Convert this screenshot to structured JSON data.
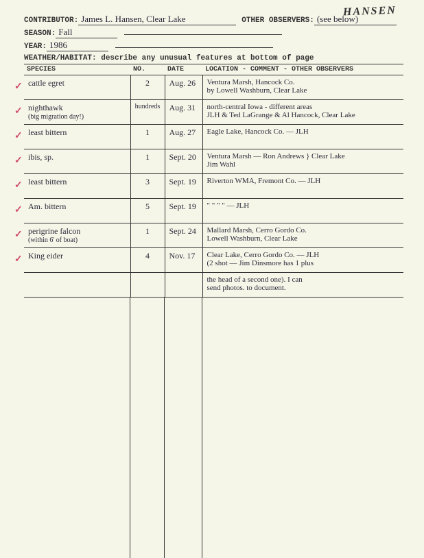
{
  "corner_name": "HANSEN",
  "header": {
    "contributor_label": "CONTRIBUTOR:",
    "contributor": "James L. Hansen, Clear Lake",
    "observers_label": "OTHER OBSERVERS:",
    "observers": "(see below)",
    "season_label": "SEASON:",
    "season": "Fall",
    "year_label": "YEAR:",
    "year": "1986",
    "weather": "WEATHER/HABITAT: describe any unusual features at bottom of page"
  },
  "table": {
    "headers": {
      "species": "SPECIES",
      "no": "NO.",
      "date": "DATE",
      "loc": "LOCATION - COMMENT - OTHER OBSERVERS"
    },
    "rows": [
      {
        "check": "✓",
        "species": "cattle egret",
        "species_sub": "",
        "no": "2",
        "date": "Aug. 26",
        "loc": "Ventura Marsh, Hancock Co.\n       by  Lowell Washburn, Clear Lake"
      },
      {
        "check": "✓",
        "species": "nighthawk",
        "species_sub": "(big migration day!)",
        "no": "hundreds",
        "date": "Aug. 31",
        "loc": "north-central Iowa - different areas\n  JLH  & Ted LaGrange & Al Hancock, Clear Lake"
      },
      {
        "check": "✓",
        "species": "least bittern",
        "species_sub": "",
        "no": "1",
        "date": "Aug. 27",
        "loc": "Eagle Lake, Hancock Co.  —  JLH"
      },
      {
        "check": "✓",
        "species": "ibis, sp.",
        "species_sub": "",
        "no": "1",
        "date": "Sept. 20",
        "loc": "Ventura Marsh  —  Ron Andrews } Clear Lake\n                    Jim Wahl"
      },
      {
        "check": "✓",
        "species": "least bittern",
        "species_sub": "",
        "no": "3",
        "date": "Sept. 19",
        "loc": "Riverton WMA, Fremont Co.   — JLH"
      },
      {
        "check": "✓",
        "species": "Am. bittern",
        "species_sub": "",
        "no": "5",
        "date": "Sept. 19",
        "loc": "   \"       \"       \"    \"    — JLH"
      },
      {
        "check": "✓",
        "species": "perigrine falcon",
        "species_sub": "(within 6' of boat)",
        "no": "1",
        "date": "Sept. 24",
        "loc": "Mallard Marsh, Cerro Gordo Co.\n   Lowell Washburn, Clear Lake"
      },
      {
        "check": "✓",
        "species": "King eider",
        "species_sub": "",
        "no": "4",
        "date": "Nov. 17",
        "loc": "Clear Lake, Cerro Gordo Co.  — JLH\n(2 shot — Jim Dinsmore has 1 plus"
      },
      {
        "check": "",
        "species": "",
        "species_sub": "",
        "no": "",
        "date": "",
        "loc": "the head of a second one).  I can\nsend photos. to document."
      }
    ]
  }
}
